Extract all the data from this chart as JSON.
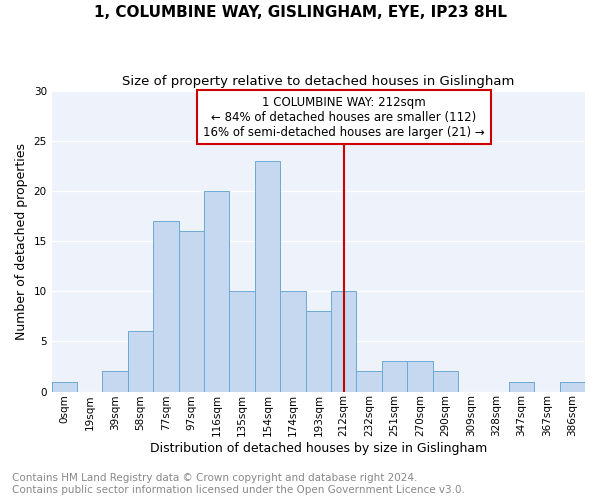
{
  "title": "1, COLUMBINE WAY, GISLINGHAM, EYE, IP23 8HL",
  "subtitle": "Size of property relative to detached houses in Gislingham",
  "xlabel": "Distribution of detached houses by size in Gislingham",
  "ylabel": "Number of detached properties",
  "footnote1": "Contains HM Land Registry data © Crown copyright and database right 2024.",
  "footnote2": "Contains public sector information licensed under the Open Government Licence v3.0.",
  "bar_labels": [
    "0sqm",
    "19sqm",
    "39sqm",
    "58sqm",
    "77sqm",
    "97sqm",
    "116sqm",
    "135sqm",
    "154sqm",
    "174sqm",
    "193sqm",
    "212sqm",
    "232sqm",
    "251sqm",
    "270sqm",
    "290sqm",
    "309sqm",
    "328sqm",
    "347sqm",
    "367sqm",
    "386sqm"
  ],
  "bar_values": [
    1,
    0,
    2,
    6,
    17,
    16,
    20,
    10,
    23,
    10,
    8,
    10,
    2,
    3,
    3,
    2,
    0,
    0,
    1,
    0,
    1
  ],
  "bar_color": "#c5d8ef",
  "bar_edge_color": "#6aaad4",
  "annotation_title": "1 COLUMBINE WAY: 212sqm",
  "annotation_line1": "← 84% of detached houses are smaller (112)",
  "annotation_line2": "16% of semi-detached houses are larger (21) →",
  "vline_x_index": 11,
  "vline_color": "#cc0000",
  "annotation_box_color": "#cc0000",
  "ylim": [
    0,
    30
  ],
  "yticks": [
    0,
    5,
    10,
    15,
    20,
    25,
    30
  ],
  "bg_color": "#eef2fa",
  "grid_color": "#ffffff",
  "title_fontsize": 11,
  "subtitle_fontsize": 9.5,
  "axis_label_fontsize": 9,
  "tick_fontsize": 7.5,
  "annotation_fontsize": 8.5,
  "footnote_fontsize": 7.5
}
